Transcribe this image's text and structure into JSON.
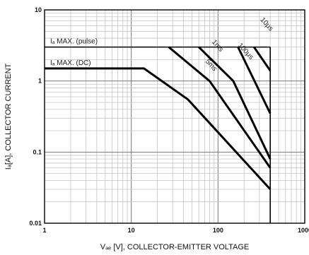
{
  "chart_data": {
    "type": "line",
    "x_scale": "log",
    "y_scale": "log",
    "xlim": [
      1,
      1000
    ],
    "ylim": [
      0.01,
      10
    ],
    "grid": true,
    "x_ticks": [
      {
        "value": 1,
        "label": "1"
      },
      {
        "value": 10,
        "label": "10"
      },
      {
        "value": 100,
        "label": "100"
      },
      {
        "value": 1000,
        "label": "1000"
      }
    ],
    "y_ticks": [
      {
        "value": 0.01,
        "label": "0.01"
      },
      {
        "value": 0.1,
        "label": "0.1"
      },
      {
        "value": 1,
        "label": "1"
      },
      {
        "value": 10,
        "label": "10"
      }
    ],
    "xlabel": "Vₐₑ [V], COLLECTOR-EMITTER VOLTAGE",
    "ylabel": "Iₐ[A], COLLECTOR CURRENT",
    "limit_lines": [
      {
        "label": "Iₐ MAX. (pulse)",
        "y": 3
      },
      {
        "label": "Iₐ MAX. (DC)",
        "y": 1.5
      }
    ],
    "voltage_limit": 400,
    "series": [
      {
        "name": "DC",
        "x": [
          1,
          14,
          45,
          400
        ],
        "y": [
          1.5,
          1.5,
          0.55,
          0.03
        ]
      },
      {
        "name": "5ms",
        "x": [
          27,
          80,
          400
        ],
        "y": [
          3,
          1,
          0.06
        ]
      },
      {
        "name": "1ms",
        "x": [
          60,
          150,
          400
        ],
        "y": [
          3,
          1,
          0.08
        ]
      },
      {
        "name": "100μs",
        "x": [
          170,
          400
        ],
        "y": [
          3,
          0.35
        ]
      },
      {
        "name": "10μs",
        "x": [
          260,
          400
        ],
        "y": [
          3,
          1.4
        ]
      }
    ],
    "annotations": [
      {
        "text": "5ms",
        "x": 80,
        "y": 1.6
      },
      {
        "text": "1ms",
        "x": 95,
        "y": 3.0
      },
      {
        "text": "100μs",
        "x": 200,
        "y": 2.5
      },
      {
        "text": "10μs",
        "x": 350,
        "y": 6
      }
    ]
  }
}
